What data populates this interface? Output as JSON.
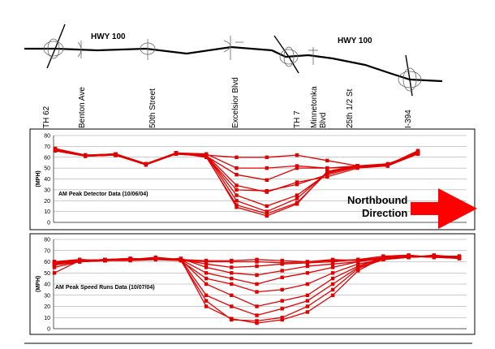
{
  "map": {
    "highway_label_1": "HWY 100",
    "highway_label_2": "HWY 100",
    "locations": [
      "TH 62",
      "Benton Ave",
      "50th Street",
      "Excelsior Blvd",
      "TH 7",
      "Minnetonka Blvd",
      "25th 1/2 St",
      "I-394"
    ]
  },
  "direction": {
    "label_line1": "Northbound",
    "label_line2": "Direction",
    "arrow_color": "#ff0000"
  },
  "colors": {
    "series": "#e00000",
    "grid": "#9a9a9a",
    "axis": "#333333"
  },
  "chart_data": [
    {
      "type": "line",
      "title": "AM Peak Detector Data (10/06/04)",
      "ylabel": "(MPH)",
      "ylim": [
        0,
        80
      ],
      "yticks": [
        0,
        10,
        20,
        30,
        40,
        50,
        60,
        70,
        80
      ],
      "grid": true,
      "x": [
        0,
        1,
        2,
        3,
        4,
        5,
        6,
        7,
        8,
        9,
        10,
        11,
        12
      ],
      "series": [
        {
          "values": [
            67,
            61,
            62,
            53,
            63,
            62,
            60,
            60,
            62,
            57,
            52,
            53,
            63
          ]
        },
        {
          "values": [
            68,
            62,
            63,
            54,
            64,
            63,
            50,
            50,
            52,
            50,
            51,
            52,
            64
          ]
        },
        {
          "values": [
            66,
            61,
            62,
            54,
            63,
            61,
            44,
            39,
            50,
            50,
            52,
            53,
            65
          ]
        },
        {
          "values": [
            67,
            62,
            63,
            54,
            64,
            62,
            34,
            28,
            37,
            42,
            50,
            52,
            63
          ]
        },
        {
          "values": [
            66,
            61,
            62,
            53,
            63,
            61,
            30,
            29,
            35,
            44,
            51,
            53,
            64
          ]
        },
        {
          "values": [
            67,
            62,
            62,
            54,
            64,
            62,
            25,
            15,
            25,
            45,
            52,
            53,
            66
          ]
        },
        {
          "values": [
            68,
            62,
            63,
            54,
            63,
            62,
            20,
            10,
            22,
            46,
            51,
            53,
            65
          ]
        },
        {
          "values": [
            66,
            61,
            62,
            53,
            64,
            60,
            16,
            8,
            18,
            46,
            52,
            54,
            64
          ]
        },
        {
          "values": [
            67,
            62,
            62,
            54,
            63,
            61,
            14,
            6,
            17,
            47,
            52,
            53,
            65
          ]
        }
      ]
    },
    {
      "type": "line",
      "title": "AM Peak Speed Runs Data (10/07/04)",
      "ylabel": "(MPH)",
      "ylim": [
        0,
        80
      ],
      "yticks": [
        0,
        10,
        20,
        30,
        40,
        50,
        60,
        70,
        80
      ],
      "grid": true,
      "x": [
        0,
        1,
        2,
        3,
        4,
        5,
        6,
        7,
        8,
        9,
        10,
        11,
        12,
        13,
        14,
        15,
        16
      ],
      "series": [
        {
          "values": [
            60,
            62,
            61,
            62,
            62,
            62,
            61,
            61,
            62,
            61,
            60,
            62,
            61,
            64,
            65,
            64,
            63
          ]
        },
        {
          "values": [
            58,
            61,
            62,
            62,
            63,
            61,
            60,
            60,
            60,
            59,
            60,
            61,
            62,
            63,
            64,
            65,
            64
          ]
        },
        {
          "values": [
            59,
            60,
            61,
            61,
            62,
            62,
            58,
            55,
            56,
            58,
            59,
            60,
            62,
            65,
            66,
            64,
            65
          ]
        },
        {
          "values": [
            60,
            61,
            62,
            63,
            62,
            63,
            55,
            50,
            48,
            52,
            56,
            58,
            60,
            64,
            64,
            65,
            63
          ]
        },
        {
          "values": [
            57,
            60,
            61,
            62,
            63,
            62,
            50,
            45,
            40,
            46,
            50,
            55,
            60,
            63,
            65,
            64,
            64
          ]
        },
        {
          "values": [
            55,
            60,
            62,
            62,
            62,
            61,
            45,
            40,
            33,
            35,
            40,
            50,
            58,
            62,
            64,
            65,
            63
          ]
        },
        {
          "values": [
            60,
            62,
            61,
            62,
            64,
            62,
            40,
            30,
            20,
            25,
            30,
            45,
            56,
            64,
            65,
            64,
            64
          ]
        },
        {
          "values": [
            58,
            61,
            62,
            63,
            62,
            62,
            30,
            20,
            12,
            18,
            25,
            40,
            55,
            63,
            64,
            65,
            65
          ]
        },
        {
          "values": [
            50,
            61,
            62,
            62,
            63,
            61,
            25,
            8,
            7,
            10,
            20,
            35,
            54,
            62,
            64,
            66,
            64
          ]
        },
        {
          "values": [
            60,
            60,
            61,
            62,
            62,
            62,
            20,
            9,
            5,
            8,
            15,
            30,
            52,
            64,
            65,
            64,
            63
          ]
        }
      ]
    }
  ]
}
